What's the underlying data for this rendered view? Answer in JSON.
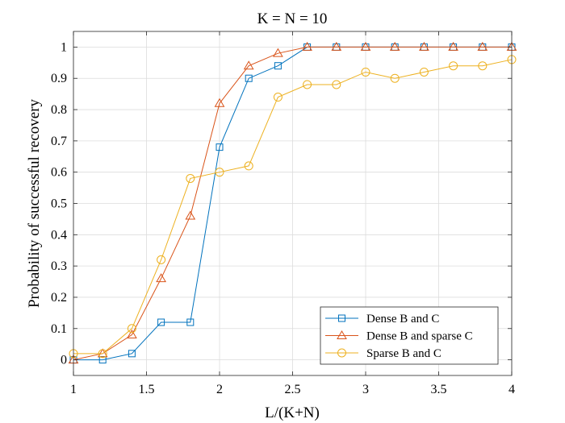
{
  "chart_data": {
    "type": "line",
    "title": "K = N = 10",
    "xlabel": "L/(K+N)",
    "ylabel": "Probability of successful recovery",
    "xlim": [
      1,
      4
    ],
    "ylim": [
      -0.05,
      1.05
    ],
    "x_ticks": [
      1,
      1.5,
      2,
      2.5,
      3,
      3.5,
      4
    ],
    "x_tick_labels": [
      "1",
      "1.5",
      "2",
      "2.5",
      "3",
      "3.5",
      "4"
    ],
    "y_ticks": [
      0,
      0.1,
      0.2,
      0.3,
      0.4,
      0.5,
      0.6,
      0.7,
      0.8,
      0.9,
      1
    ],
    "y_tick_labels": [
      "0",
      "0.1",
      "0.2",
      "0.3",
      "0.4",
      "0.5",
      "0.6",
      "0.7",
      "0.8",
      "0.9",
      "1"
    ],
    "grid": true,
    "legend_position": "bottom-right",
    "x": [
      1,
      1.2,
      1.4,
      1.6,
      1.8,
      2,
      2.2,
      2.4,
      2.6,
      2.8,
      3,
      3.2,
      3.4,
      3.6,
      3.8,
      4
    ],
    "series": [
      {
        "name": "Dense B and C",
        "color": "#0072BD",
        "marker": "square",
        "values": [
          0,
          0,
          0.02,
          0.12,
          0.12,
          0.68,
          0.9,
          0.94,
          1,
          1,
          1,
          1,
          1,
          1,
          1,
          1
        ]
      },
      {
        "name": "Dense B and sparse C",
        "color": "#D95319",
        "marker": "triangle",
        "values": [
          0,
          0.02,
          0.08,
          0.26,
          0.46,
          0.82,
          0.94,
          0.98,
          1,
          1,
          1,
          1,
          1,
          1,
          1,
          1
        ]
      },
      {
        "name": "Sparse B and C",
        "color": "#EDB120",
        "marker": "circle",
        "values": [
          0.02,
          0.02,
          0.1,
          0.32,
          0.58,
          0.6,
          0.62,
          0.84,
          0.88,
          0.88,
          0.92,
          0.9,
          0.92,
          0.94,
          0.94,
          0.96
        ]
      }
    ]
  }
}
